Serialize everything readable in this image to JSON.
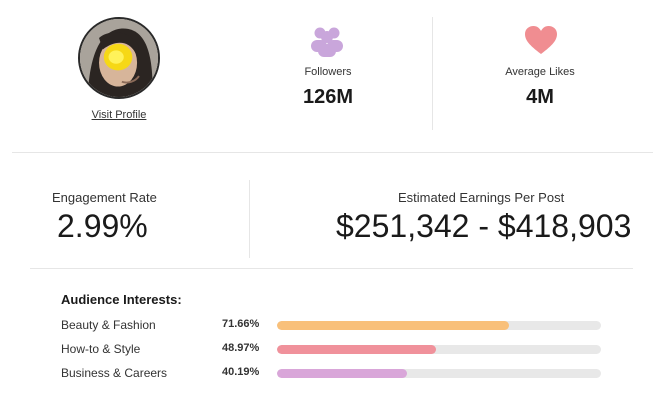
{
  "profile": {
    "visit_label": "Visit Profile"
  },
  "stats": {
    "followers": {
      "label": "Followers",
      "value": "126M",
      "icon": "users-icon",
      "color": "#c9a6db"
    },
    "average_likes": {
      "label": "Average Likes",
      "value": "4M",
      "icon": "heart-icon",
      "color": "#f08d91"
    }
  },
  "engagement": {
    "label": "Engagement Rate",
    "value": "2.99%"
  },
  "earnings": {
    "label": "Estimated Earnings Per Post",
    "value": "$251,342 - $418,903"
  },
  "audience": {
    "title": "Audience Interests:",
    "interests": [
      {
        "name": "Beauty & Fashion",
        "percent_label": "71.66%",
        "percent": 71.66,
        "color": "#f9c07a"
      },
      {
        "name": "How-to & Style",
        "percent_label": "48.97%",
        "percent": 48.97,
        "color": "#f0919b"
      },
      {
        "name": "Business & Careers",
        "percent_label": "40.19%",
        "percent": 40.19,
        "color": "#d9a6d9"
      }
    ]
  }
}
